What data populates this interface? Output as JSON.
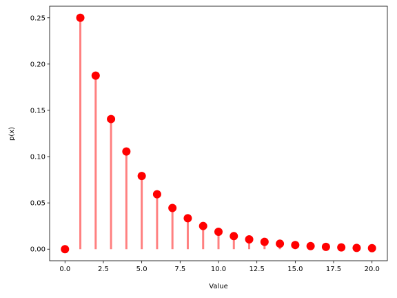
{
  "chart_data": {
    "type": "stem",
    "x_label": "Value",
    "y_label": "p(x)",
    "x": [
      0,
      1,
      2,
      3,
      4,
      5,
      6,
      7,
      8,
      9,
      10,
      11,
      12,
      13,
      14,
      15,
      16,
      17,
      18,
      19,
      20
    ],
    "values": [
      0,
      0.25,
      0.1875,
      0.1406,
      0.1055,
      0.0791,
      0.0593,
      0.0445,
      0.0334,
      0.025,
      0.0188,
      0.0141,
      0.0106,
      0.0079,
      0.0059,
      0.0045,
      0.0033,
      0.0025,
      0.0019,
      0.0014,
      0.0011
    ],
    "line_color": "#ff8080",
    "marker_color": "#ff0000",
    "xlim": [
      -1,
      21
    ],
    "xticks": [
      {
        "value": 0,
        "label": "0.0"
      },
      {
        "value": 2.5,
        "label": "2.5"
      },
      {
        "value": 5,
        "label": "5.0"
      },
      {
        "value": 7.5,
        "label": "7.5"
      },
      {
        "value": 10,
        "label": "10.0"
      },
      {
        "value": 12.5,
        "label": "12.5"
      },
      {
        "value": 15,
        "label": "15.0"
      },
      {
        "value": 17.5,
        "label": "17.5"
      },
      {
        "value": 20,
        "label": "20.0"
      }
    ],
    "ylim": [
      -0.0125,
      0.2625
    ],
    "yticks": [
      {
        "value": 0,
        "label": "0.00"
      },
      {
        "value": 0.05,
        "label": "0.05"
      },
      {
        "value": 0.1,
        "label": "0.10"
      },
      {
        "value": 0.15,
        "label": "0.15"
      },
      {
        "value": 0.2,
        "label": "0.20"
      },
      {
        "value": 0.25,
        "label": "0.25"
      }
    ]
  }
}
